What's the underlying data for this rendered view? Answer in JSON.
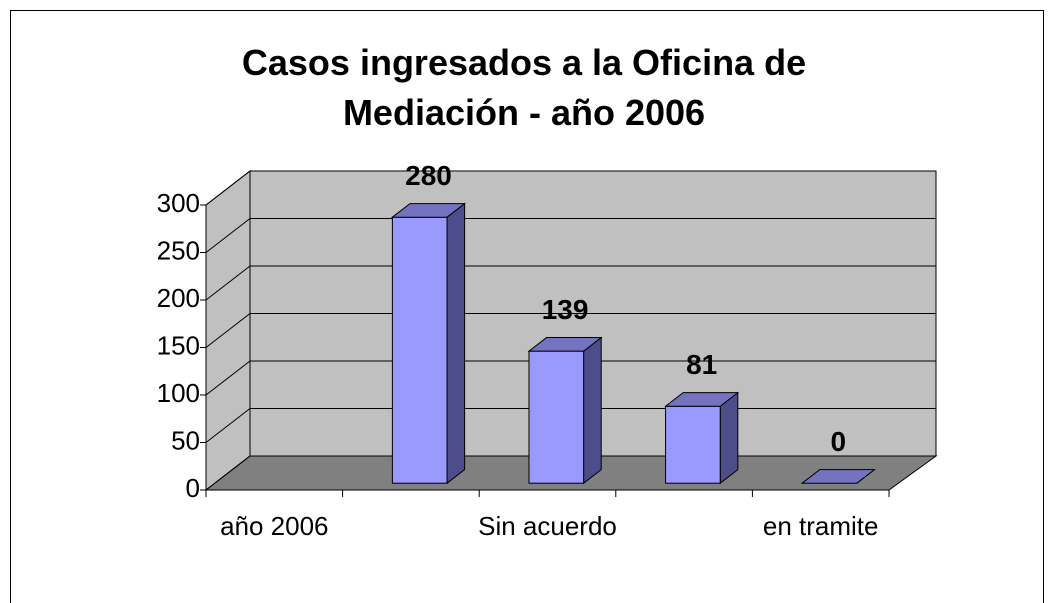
{
  "chart_data": {
    "type": "bar",
    "title": "Casos ingresados a la Oficina de Mediación - año 2006",
    "categories": [
      "año 2006",
      null,
      "Sin acuerdo",
      null,
      "en tramite"
    ],
    "values": [
      null,
      280,
      139,
      81,
      0
    ],
    "color": "#9999ff",
    "ylim": [
      0,
      300
    ],
    "yticks": [
      0,
      50,
      100,
      150,
      200,
      250,
      300
    ],
    "grid": true
  }
}
